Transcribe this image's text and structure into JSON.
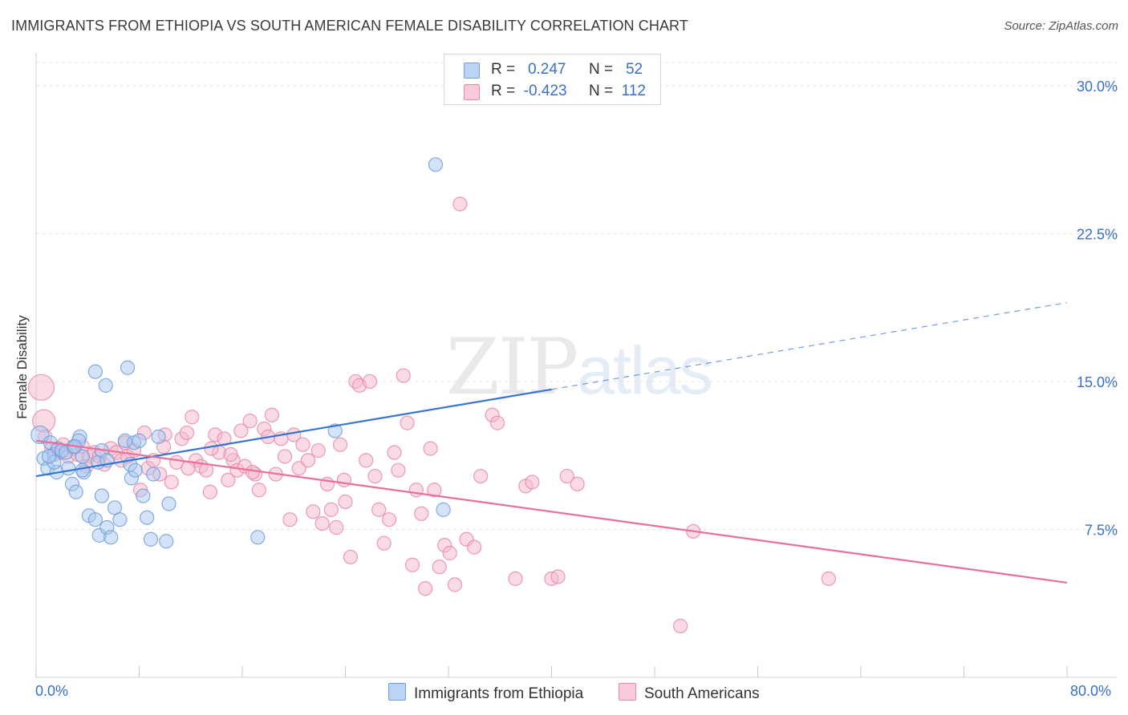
{
  "title": "IMMIGRANTS FROM ETHIOPIA VS SOUTH AMERICAN FEMALE DISABILITY CORRELATION CHART",
  "source": "Source: ZipAtlas.com",
  "watermark": {
    "part1": "ZIP",
    "part2": "atlas"
  },
  "legend_top": {
    "rows": [
      {
        "r_label": "R =",
        "r_value": "0.247",
        "n_label": "N =",
        "n_value": "52"
      },
      {
        "r_label": "R =",
        "r_value": "-0.423",
        "n_label": "N =",
        "n_value": "112"
      }
    ]
  },
  "legend_bottom": [
    "Immigrants from Ethiopia",
    "South Americans"
  ],
  "colors": {
    "blue_fill": "#a9c8f0",
    "blue_stroke": "#6f9fdc",
    "blue_line": "#3574d4",
    "pink_fill": "#f6b8cc",
    "pink_stroke": "#e889a8",
    "pink_line": "#e8709a",
    "tick_text": "#3a6fc8",
    "grid": "#e4e4e4"
  },
  "chart_data": {
    "type": "scatter",
    "title": "IMMIGRANTS FROM ETHIOPIA VS SOUTH AMERICAN FEMALE DISABILITY CORRELATION CHART",
    "xlabel": "",
    "ylabel": "Female Disability",
    "xlim": [
      0,
      80
    ],
    "ylim": [
      0,
      31.5
    ],
    "x_tick_labels": [
      "0.0%",
      "80.0%"
    ],
    "y_ticks": [
      7.5,
      15.0,
      22.5,
      30.0
    ],
    "y_tick_labels": [
      "7.5%",
      "15.0%",
      "22.5%",
      "30.0%"
    ],
    "grid": true,
    "series": [
      {
        "name": "Immigrants from Ethiopia",
        "color": "#a9c8f0",
        "trend": {
          "x1": 0,
          "y1": 10.2,
          "x2": 40,
          "y2": 14.6,
          "dash_to_x": 80,
          "dash_to_y": 19.0
        },
        "points": [
          [
            0.3,
            12.3
          ],
          [
            0.6,
            11.1
          ],
          [
            0.9,
            10.6
          ],
          [
            1.1,
            11.9
          ],
          [
            1.4,
            11.3
          ],
          [
            1.6,
            10.4
          ],
          [
            1.7,
            11.6
          ],
          [
            1.4,
            10.9
          ],
          [
            2.0,
            11.5
          ],
          [
            2.3,
            11.4
          ],
          [
            2.5,
            10.6
          ],
          [
            2.8,
            9.8
          ],
          [
            2.9,
            11.7
          ],
          [
            3.1,
            9.4
          ],
          [
            3.4,
            12.2
          ],
          [
            3.6,
            11.2
          ],
          [
            3.3,
            12.0
          ],
          [
            3.0,
            11.7
          ],
          [
            3.7,
            10.4
          ],
          [
            4.1,
            8.2
          ],
          [
            4.6,
            8.0
          ],
          [
            3.6,
            10.5
          ],
          [
            4.8,
            10.9
          ],
          [
            5.1,
            11.5
          ],
          [
            5.5,
            11.0
          ],
          [
            4.6,
            15.5
          ],
          [
            4.9,
            7.2
          ],
          [
            5.5,
            7.6
          ],
          [
            5.8,
            7.1
          ],
          [
            5.1,
            9.2
          ],
          [
            6.1,
            8.6
          ],
          [
            6.5,
            8.0
          ],
          [
            5.4,
            14.8
          ],
          [
            6.9,
            12.0
          ],
          [
            7.3,
            10.8
          ],
          [
            7.6,
            11.9
          ],
          [
            7.1,
            15.7
          ],
          [
            7.4,
            10.1
          ],
          [
            7.7,
            10.5
          ],
          [
            8.0,
            12.0
          ],
          [
            8.3,
            9.2
          ],
          [
            8.6,
            8.1
          ],
          [
            8.9,
            7.0
          ],
          [
            9.1,
            10.3
          ],
          [
            9.5,
            12.2
          ],
          [
            10.1,
            6.9
          ],
          [
            10.3,
            8.8
          ],
          [
            17.2,
            7.1
          ],
          [
            23.2,
            12.5
          ],
          [
            31.0,
            26.0
          ],
          [
            31.6,
            8.5
          ],
          [
            1.0,
            11.2
          ]
        ]
      },
      {
        "name": "South Americans",
        "color": "#f6b8cc",
        "trend": {
          "x1": 0,
          "y1": 12.0,
          "x2": 80,
          "y2": 4.8
        },
        "points": [
          [
            0.4,
            14.7
          ],
          [
            0.6,
            13.0
          ],
          [
            0.7,
            12.2
          ],
          [
            1.2,
            11.6
          ],
          [
            1.6,
            11.5
          ],
          [
            2.1,
            11.8
          ],
          [
            2.5,
            11.2
          ],
          [
            2.9,
            11.6
          ],
          [
            3.2,
            11.3
          ],
          [
            3.6,
            11.7
          ],
          [
            4.1,
            11.2
          ],
          [
            4.5,
            11.4
          ],
          [
            4.9,
            11.2
          ],
          [
            5.3,
            10.8
          ],
          [
            5.8,
            11.6
          ],
          [
            6.2,
            11.4
          ],
          [
            6.6,
            11.0
          ],
          [
            7.1,
            11.2
          ],
          [
            7.6,
            11.5
          ],
          [
            8.1,
            9.5
          ],
          [
            8.4,
            12.4
          ],
          [
            8.7,
            10.6
          ],
          [
            9.1,
            11.0
          ],
          [
            9.6,
            10.3
          ],
          [
            10.0,
            12.3
          ],
          [
            10.5,
            9.9
          ],
          [
            10.9,
            10.9
          ],
          [
            11.3,
            12.1
          ],
          [
            11.7,
            12.4
          ],
          [
            12.1,
            13.2
          ],
          [
            12.4,
            11.0
          ],
          [
            12.8,
            10.7
          ],
          [
            13.2,
            10.5
          ],
          [
            13.5,
            9.4
          ],
          [
            13.9,
            12.3
          ],
          [
            14.2,
            11.4
          ],
          [
            14.6,
            12.1
          ],
          [
            14.9,
            10.0
          ],
          [
            15.3,
            11.0
          ],
          [
            15.6,
            10.5
          ],
          [
            15.9,
            12.5
          ],
          [
            16.2,
            10.7
          ],
          [
            16.6,
            13.0
          ],
          [
            17.0,
            10.3
          ],
          [
            17.3,
            9.5
          ],
          [
            17.7,
            12.6
          ],
          [
            18.0,
            12.2
          ],
          [
            18.3,
            13.3
          ],
          [
            18.6,
            10.3
          ],
          [
            19.0,
            12.1
          ],
          [
            19.3,
            11.2
          ],
          [
            19.7,
            8.0
          ],
          [
            20.0,
            12.3
          ],
          [
            20.4,
            10.6
          ],
          [
            20.7,
            11.8
          ],
          [
            21.1,
            11.0
          ],
          [
            21.5,
            8.4
          ],
          [
            21.9,
            11.5
          ],
          [
            22.2,
            7.8
          ],
          [
            22.6,
            9.8
          ],
          [
            22.9,
            8.5
          ],
          [
            23.3,
            7.6
          ],
          [
            23.6,
            11.8
          ],
          [
            24.0,
            8.9
          ],
          [
            24.4,
            6.1
          ],
          [
            24.8,
            15.0
          ],
          [
            25.1,
            14.8
          ],
          [
            25.6,
            11.0
          ],
          [
            25.9,
            15.0
          ],
          [
            26.3,
            10.2
          ],
          [
            26.6,
            8.5
          ],
          [
            27.0,
            6.8
          ],
          [
            27.4,
            8.0
          ],
          [
            27.8,
            11.4
          ],
          [
            28.1,
            10.5
          ],
          [
            28.5,
            15.3
          ],
          [
            28.8,
            12.9
          ],
          [
            29.2,
            5.7
          ],
          [
            29.5,
            9.5
          ],
          [
            29.9,
            8.3
          ],
          [
            30.2,
            4.5
          ],
          [
            30.6,
            11.6
          ],
          [
            30.9,
            9.5
          ],
          [
            31.3,
            5.6
          ],
          [
            31.7,
            6.7
          ],
          [
            32.1,
            6.3
          ],
          [
            32.5,
            4.7
          ],
          [
            32.9,
            24.0
          ],
          [
            33.4,
            7.0
          ],
          [
            34.0,
            6.6
          ],
          [
            34.5,
            10.2
          ],
          [
            35.4,
            13.3
          ],
          [
            35.8,
            12.9
          ],
          [
            37.2,
            5.0
          ],
          [
            38.0,
            9.7
          ],
          [
            38.5,
            9.9
          ],
          [
            40.0,
            5.0
          ],
          [
            40.5,
            5.1
          ],
          [
            41.2,
            10.2
          ],
          [
            42.0,
            9.8
          ],
          [
            50.0,
            2.6
          ],
          [
            51.0,
            7.4
          ],
          [
            61.5,
            5.0
          ],
          [
            1.9,
            11.4
          ],
          [
            3.9,
            10.7
          ],
          [
            6.9,
            11.9
          ],
          [
            9.9,
            11.7
          ],
          [
            11.8,
            10.6
          ],
          [
            13.6,
            11.6
          ],
          [
            15.1,
            11.3
          ],
          [
            16.8,
            10.4
          ],
          [
            23.9,
            10.0
          ]
        ]
      }
    ]
  }
}
